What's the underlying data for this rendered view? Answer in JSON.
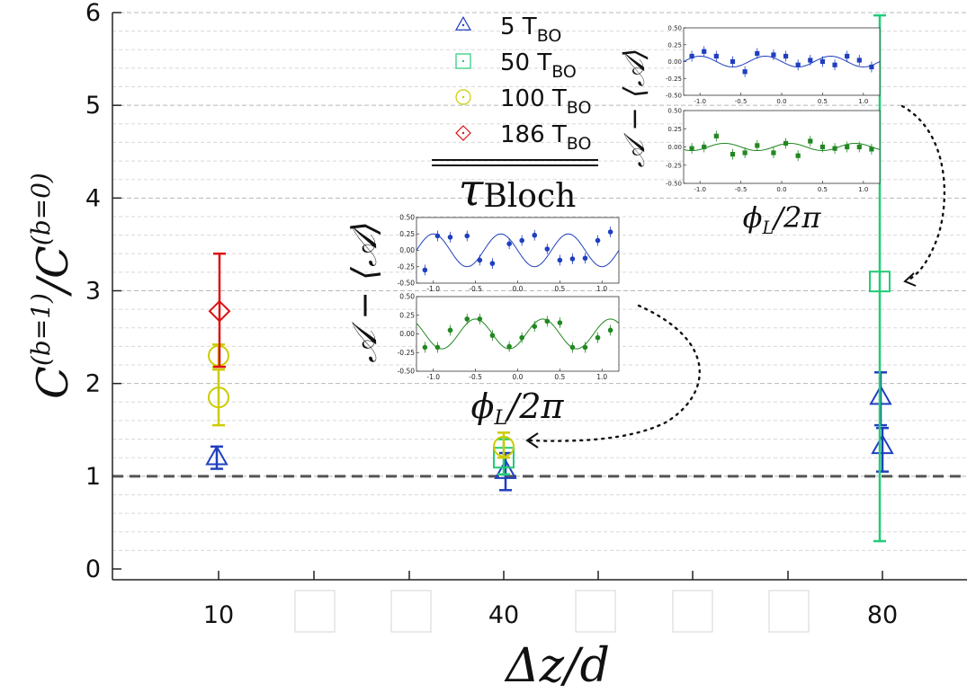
{
  "chart_data": {
    "type": "scatter",
    "title": "",
    "xlabel": "Δz/d",
    "ylabel": "C^(b=1) / C^(b=0)",
    "ylabel_main": "C",
    "ylabel_sup_num": "(b=1)",
    "ylabel_sup_den": "(b=0)",
    "ylabel_sep": "/",
    "categories": [
      "10",
      "40",
      "80"
    ],
    "ylim": [
      0,
      6
    ],
    "yticks": [
      "0",
      "1",
      "2",
      "3",
      "4",
      "5",
      "6"
    ],
    "reference_line": 1,
    "grid": true,
    "legend_placement": "top-center",
    "legend_footer_symbol": "τ",
    "legend_footer_sub": "Bloch",
    "series": [
      {
        "name": "5 T",
        "name_sub": "BO",
        "color": "#1f3fbf",
        "marker": "triangle",
        "points": [
          {
            "x": "10",
            "y": 1.2,
            "err_low": 1.08,
            "err_high": 1.32
          },
          {
            "x": "40",
            "y": 1.05,
            "err_low": 0.85,
            "err_high": 1.25
          },
          {
            "x": "80",
            "y": 1.85,
            "err_low": 1.55,
            "err_high": 2.12
          },
          {
            "x": "80",
            "y": 1.32,
            "err_low": 1.05,
            "err_high": 1.52
          }
        ]
      },
      {
        "name": "50 T",
        "name_sub": "BO",
        "color": "#22cc77",
        "marker": "square",
        "points": [
          {
            "x": "40",
            "y": 1.2,
            "err_low": 1.02,
            "err_high": 1.4
          },
          {
            "x": "80",
            "y": 3.1,
            "err_low": 0.3,
            "err_high": 5.97
          }
        ]
      },
      {
        "name": "100 T",
        "name_sub": "BO",
        "color": "#cccc00",
        "marker": "circle",
        "points": [
          {
            "x": "10",
            "y": 2.3,
            "err_low": 2.18,
            "err_high": 2.42
          },
          {
            "x": "10",
            "y": 1.85,
            "err_low": 1.55,
            "err_high": 2.15
          },
          {
            "x": "40",
            "y": 1.32,
            "err_low": 1.2,
            "err_high": 1.47
          }
        ]
      },
      {
        "name": "186 T",
        "name_sub": "BO",
        "color": "#dd1111",
        "marker": "diamond",
        "points": [
          {
            "x": "10",
            "y": 2.78,
            "err_low": 2.18,
            "err_high": 3.4
          }
        ]
      }
    ],
    "insets": [
      {
        "location": "middle",
        "xlabel_main": "ϕ",
        "xlabel_sub": "L",
        "xlabel_tail": "/2π",
        "ylabel": "𝒜 − ⟨𝒜⟩",
        "yticks": [
          "0.50",
          "0.25",
          "0.00",
          "-0.25",
          "-0.50"
        ],
        "xticks": [
          "-1.0",
          "-0.5",
          "0.0",
          "0.5",
          "1.0"
        ],
        "xlim": [
          -1.2,
          1.2
        ],
        "ylim": [
          -0.5,
          0.5
        ],
        "panels": [
          {
            "color": "#1f3fbf",
            "marker": "circle",
            "amp": 0.25,
            "phase": 0.0,
            "x": [
              -1.1,
              -0.95,
              -0.8,
              -0.6,
              -0.45,
              -0.3,
              -0.1,
              0.05,
              0.2,
              0.35,
              0.5,
              0.65,
              0.8,
              0.95,
              1.1
            ],
            "y": [
              -0.3,
              0.22,
              0.2,
              0.22,
              -0.15,
              -0.2,
              0.1,
              0.15,
              0.23,
              0.02,
              -0.15,
              -0.13,
              -0.12,
              0.15,
              0.28
            ]
          },
          {
            "color": "#228822",
            "marker": "circle",
            "amp": 0.2,
            "phase": 0.5,
            "x": [
              -1.1,
              -0.95,
              -0.8,
              -0.6,
              -0.45,
              -0.3,
              -0.1,
              0.05,
              0.2,
              0.35,
              0.5,
              0.65,
              0.8,
              0.95,
              1.1
            ],
            "y": [
              -0.18,
              -0.18,
              0.05,
              0.2,
              0.2,
              -0.02,
              -0.17,
              -0.05,
              0.1,
              0.17,
              0.15,
              -0.18,
              -0.18,
              -0.05,
              0.05
            ]
          }
        ]
      },
      {
        "location": "top-right",
        "xlabel_main": "ϕ",
        "xlabel_sub": "L",
        "xlabel_tail": "/2π",
        "ylabel": "𝒜 − ⟨𝒜⟩",
        "yticks": [
          "0.50",
          "0.25",
          "0.00",
          "-0.25",
          "-0.50"
        ],
        "xticks": [
          "-1.0",
          "-0.5",
          "0.0",
          "0.5",
          "1.0"
        ],
        "xlim": [
          -1.2,
          1.2
        ],
        "ylim": [
          -0.5,
          0.5
        ],
        "panels": [
          {
            "color": "#1f3fbf",
            "marker": "square",
            "amp": 0.08,
            "phase": 0.0,
            "x": [
              -1.1,
              -0.95,
              -0.8,
              -0.6,
              -0.45,
              -0.3,
              -0.1,
              0.05,
              0.2,
              0.35,
              0.5,
              0.65,
              0.8,
              0.95,
              1.1
            ],
            "y": [
              0.08,
              0.15,
              0.08,
              0.0,
              -0.15,
              0.12,
              0.1,
              0.08,
              -0.05,
              0.02,
              0.0,
              -0.05,
              0.08,
              0.02,
              -0.08
            ]
          },
          {
            "color": "#228822",
            "marker": "square",
            "amp": 0.05,
            "phase": 0.3,
            "x": [
              -1.1,
              -0.95,
              -0.8,
              -0.6,
              -0.45,
              -0.3,
              -0.1,
              0.05,
              0.2,
              0.35,
              0.5,
              0.65,
              0.8,
              0.95,
              1.1
            ],
            "y": [
              -0.02,
              0.0,
              0.15,
              -0.1,
              -0.08,
              0.02,
              -0.08,
              0.05,
              -0.12,
              0.08,
              0.0,
              -0.02,
              0.0,
              0.0,
              -0.03
            ]
          }
        ]
      }
    ]
  }
}
